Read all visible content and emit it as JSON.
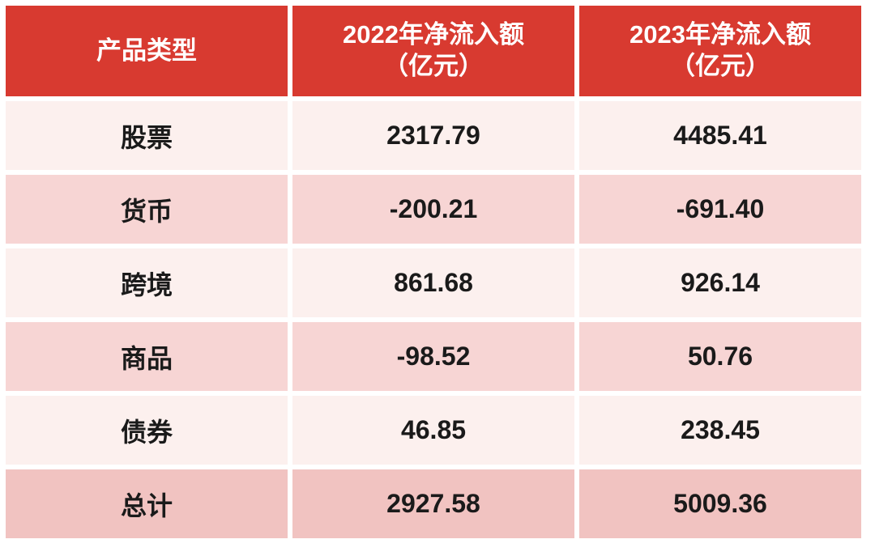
{
  "colors": {
    "header_bg": "#d83a30",
    "header_fg": "#ffffff",
    "row_light": "#fcf0ee",
    "row_medium": "#f7d5d4",
    "row_total": "#f1c3c1",
    "cell_fg": "#1a1a1a"
  },
  "table": {
    "header": {
      "col1": "产品类型",
      "col2_line1": "2022年净流入额",
      "col2_line2": "（亿元）",
      "col3_line1": "2023年净流入额",
      "col3_line2": "（亿元）"
    },
    "rows": [
      {
        "category": "股票",
        "y2022": "2317.79",
        "y2023": "4485.41"
      },
      {
        "category": "货币",
        "y2022": "-200.21",
        "y2023": "-691.40"
      },
      {
        "category": "跨境",
        "y2022": "861.68",
        "y2023": "926.14"
      },
      {
        "category": "商品",
        "y2022": "-98.52",
        "y2023": "50.76"
      },
      {
        "category": "债券",
        "y2022": "46.85",
        "y2023": "238.45"
      },
      {
        "category": "总计",
        "y2022": "2927.58",
        "y2023": "5009.36"
      }
    ]
  },
  "chart_data": {
    "type": "table",
    "title": "",
    "columns": [
      "产品类型",
      "2022年净流入额（亿元）",
      "2023年净流入额（亿元）"
    ],
    "categories": [
      "股票",
      "货币",
      "跨境",
      "商品",
      "债券",
      "总计"
    ],
    "series": [
      {
        "name": "2022年净流入额（亿元）",
        "values": [
          2317.79,
          -200.21,
          861.68,
          -98.52,
          46.85,
          2927.58
        ]
      },
      {
        "name": "2023年净流入额（亿元）",
        "values": [
          4485.41,
          -691.4,
          926.14,
          50.76,
          238.45,
          5009.36
        ]
      }
    ]
  }
}
